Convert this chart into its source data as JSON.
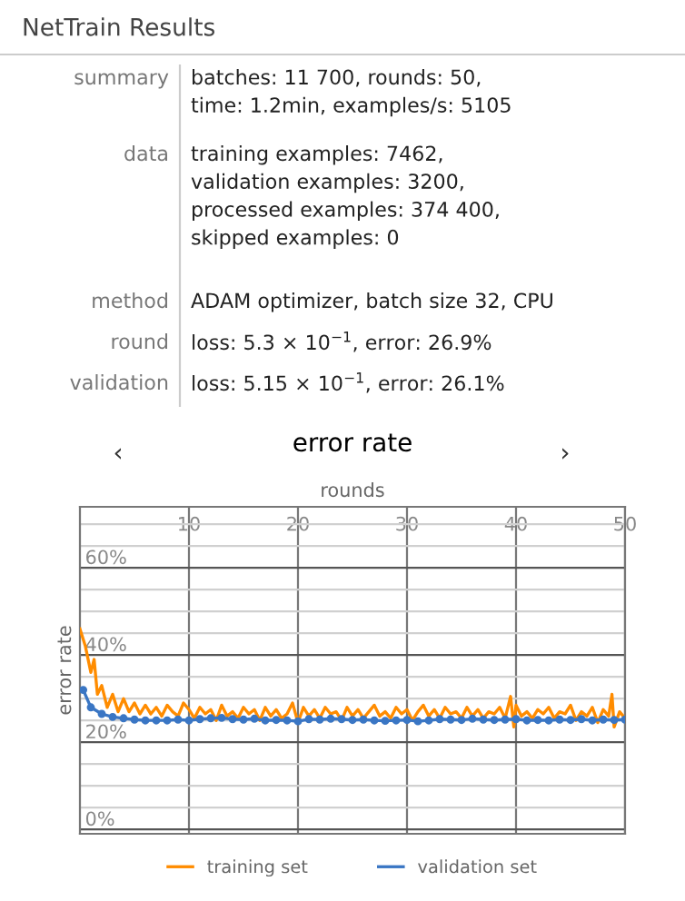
{
  "chart_data": {
    "type": "line",
    "title": "error rate",
    "xlabel": "rounds",
    "ylabel": "error rate",
    "annotations": [
      "NetTrain Results",
      "summary",
      "batches: 11 700, rounds: 50,\ntime: 1.2min, examples/s: 5105",
      "data",
      "training examples: 7462,\nvalidation examples: 3200,\nprocessed examples: 374 400,\nskipped examples: 0",
      "method",
      "ADAM optimizer, batch size 32, CPU",
      "round",
      "loss: 5.3 × 10$^{−1}$, error: 26.9%",
      "validation",
      "loss: 5.15 × 10$^{−1}$, error: 26.1%",
      "‹",
      "›"
    ],
    "xlim": [
      0,
      50
    ],
    "xticks": [
      10,
      20,
      30,
      40,
      50
    ],
    "ylim": [
      -1,
      74
    ],
    "yticks": [
      {
        "value": 0,
        "label": "0%"
      },
      {
        "value": 5,
        "label": null
      },
      {
        "value": 10,
        "label": null
      },
      {
        "value": 15,
        "label": null
      },
      {
        "value": 20,
        "label": "20%"
      },
      {
        "value": 25,
        "label": null
      },
      {
        "value": 30,
        "label": null
      },
      {
        "value": 35,
        "label": null
      },
      {
        "value": 40,
        "label": "40%"
      },
      {
        "value": 45,
        "label": null
      },
      {
        "value": 50,
        "label": null
      },
      {
        "value": 55,
        "label": null
      },
      {
        "value": 60,
        "label": "60%"
      },
      {
        "value": 65,
        "label": null
      },
      {
        "value": 70,
        "label": null
      }
    ],
    "grid": true,
    "legend": "bottom",
    "series": [
      {
        "name": "training set",
        "color": "#ff8c00",
        "marker": "none",
        "x": [
          0,
          0.5,
          1,
          1.3,
          1.6,
          2,
          2.5,
          3,
          3.5,
          4,
          4.5,
          5,
          5.5,
          6,
          6.5,
          7,
          7.5,
          8,
          8.5,
          9,
          9.5,
          10,
          10.5,
          11,
          11.5,
          12,
          12.5,
          13,
          13.5,
          14,
          14.5,
          15,
          15.5,
          16,
          16.5,
          17,
          17.5,
          18,
          18.5,
          19,
          19.5,
          20,
          20.5,
          21,
          21.5,
          22,
          22.5,
          23,
          23.5,
          24,
          24.5,
          25,
          25.5,
          26,
          26.5,
          27,
          27.5,
          28,
          28.5,
          29,
          29.5,
          30,
          30.5,
          31,
          31.5,
          32,
          32.5,
          33,
          33.5,
          34,
          34.5,
          35,
          35.5,
          36,
          36.5,
          37,
          37.5,
          38,
          38.5,
          39,
          39.5,
          39.8,
          40,
          40.5,
          41,
          41.5,
          42,
          42.5,
          43,
          43.5,
          44,
          44.5,
          45,
          45.5,
          46,
          46.5,
          47,
          47.5,
          48,
          48.5,
          48.8,
          49,
          49.5,
          50
        ],
        "values": [
          46,
          42,
          36,
          39,
          31,
          33,
          28,
          31,
          27,
          30,
          27,
          29,
          26.5,
          28.5,
          26.5,
          28,
          26,
          28.5,
          27,
          26,
          29,
          27.5,
          25.5,
          28,
          26.5,
          27.5,
          25,
          28.5,
          26,
          27,
          25.5,
          28,
          26.5,
          27.5,
          25,
          28,
          26,
          27.5,
          25.5,
          26.5,
          29,
          24.5,
          28,
          26,
          27.5,
          25.5,
          28,
          26.5,
          27,
          25,
          28,
          26,
          27.5,
          25.5,
          27,
          28.5,
          26,
          27,
          25.5,
          28,
          26.5,
          27.5,
          25,
          27,
          28.5,
          26,
          27.5,
          25.5,
          28,
          26.5,
          27,
          25.5,
          28,
          26,
          27.5,
          25.5,
          27,
          26.5,
          28,
          25.5,
          30.5,
          23.5,
          28.5,
          26,
          27,
          25.5,
          27.5,
          26.5,
          28,
          25.5,
          27,
          26.5,
          28.5,
          25,
          27,
          26,
          28,
          24.5,
          27.5,
          26,
          31,
          23.5,
          27,
          25.5
        ]
      },
      {
        "name": "validation set",
        "color": "#3a76c4",
        "marker": "circle",
        "x": [
          0.3,
          1,
          2,
          3,
          4,
          5,
          6,
          7,
          8,
          9,
          10,
          11,
          12,
          13,
          14,
          15,
          16,
          17,
          18,
          19,
          20,
          21,
          22,
          23,
          24,
          25,
          26,
          27,
          28,
          29,
          30,
          31,
          32,
          33,
          34,
          35,
          36,
          37,
          38,
          39,
          40,
          41,
          42,
          43,
          44,
          45,
          46,
          47,
          48,
          49,
          50
        ],
        "values": [
          32,
          28,
          26.5,
          25.8,
          25.5,
          25.2,
          25,
          25,
          25,
          25.2,
          25,
          25.3,
          25.5,
          25.6,
          25.3,
          25.2,
          25.4,
          25,
          25.1,
          25,
          24.8,
          25.3,
          25.2,
          25.4,
          25.3,
          25.1,
          25.2,
          25,
          24.9,
          25,
          25.1,
          24.8,
          25,
          25.3,
          25.2,
          25.1,
          25.4,
          25.2,
          25.1,
          25.2,
          25.3,
          25,
          25.1,
          25,
          25.2,
          25.1,
          25.3,
          25,
          25.2,
          25.1,
          25.2
        ]
      }
    ]
  }
}
